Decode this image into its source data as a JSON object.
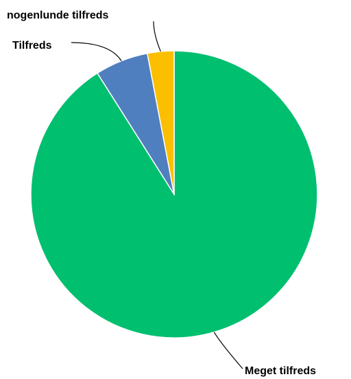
{
  "chart_data": {
    "type": "pie",
    "start_angle_deg": 0,
    "direction": "clockwise",
    "slices": [
      {
        "label": "Meget tilfreds",
        "value": 91.0,
        "color": "#00BF6F"
      },
      {
        "label": "Tilfreds",
        "value": 6.0,
        "color": "#4F7FBF"
      },
      {
        "label": "nogenlunde tilfreds",
        "value": 3.0,
        "color": "#FBBF00"
      }
    ],
    "legend": "none"
  }
}
